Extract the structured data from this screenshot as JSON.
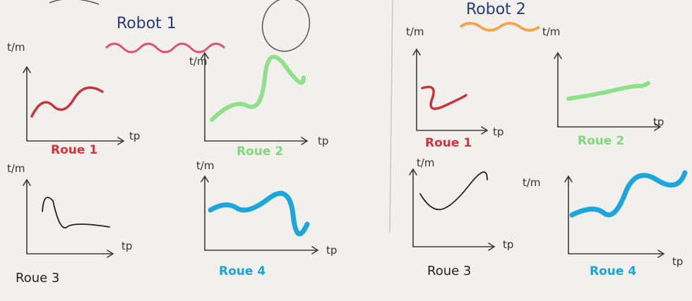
{
  "robots": [
    {
      "title": "Robot 1",
      "plots": [
        {
          "y_label": "t/m",
          "x_label": "tp",
          "caption": "Roue 1"
        },
        {
          "y_label": "t/m",
          "x_label": "tp",
          "caption": "Roue 2"
        },
        {
          "y_label": "t/m",
          "x_label": "tp",
          "caption": "Roue 3"
        },
        {
          "y_label": "t/m",
          "x_label": "tp",
          "caption": "Roue 4"
        }
      ]
    },
    {
      "title": "Robot 2",
      "plots": [
        {
          "y_label": "t/m",
          "x_label": "tp",
          "caption": "Roue 1"
        },
        {
          "y_label": "t/m",
          "x_label": "tp",
          "caption": "Roue 2"
        },
        {
          "y_label": "t/m",
          "x_label": "tp",
          "caption": "Roue 3"
        },
        {
          "y_label": "t/m",
          "x_label": "tp",
          "caption": "Roue 4"
        }
      ]
    }
  ]
}
